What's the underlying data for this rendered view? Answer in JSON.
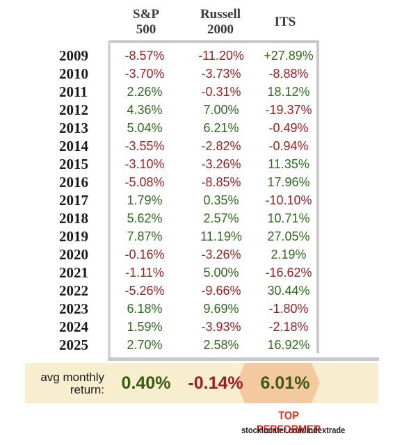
{
  "chart_data": {
    "type": "table",
    "columns": [
      {
        "line1": "S&P",
        "line2": "500"
      },
      {
        "line1": "Russell",
        "line2": "2000"
      },
      {
        "line1": "ITS",
        "line2": ""
      }
    ],
    "rows": [
      {
        "year": "2009",
        "values": [
          "-8.57%",
          "-11.20%",
          "+27.89%"
        ]
      },
      {
        "year": "2010",
        "values": [
          "-3.70%",
          "-3.73%",
          "-8.88%"
        ]
      },
      {
        "year": "2011",
        "values": [
          "2.26%",
          "-0.31%",
          "18.12%"
        ]
      },
      {
        "year": "2012",
        "values": [
          "4.36%",
          "7.00%",
          "-19.37%"
        ]
      },
      {
        "year": "2013",
        "values": [
          "5.04%",
          "6.21%",
          "-0.49%"
        ]
      },
      {
        "year": "2014",
        "values": [
          "-3.55%",
          "-2.82%",
          "-0.94%"
        ]
      },
      {
        "year": "2015",
        "values": [
          "-3.10%",
          "-3.26%",
          "11.35%"
        ]
      },
      {
        "year": "2016",
        "values": [
          "-5.08%",
          "-8.85%",
          "17.96%"
        ]
      },
      {
        "year": "2017",
        "values": [
          "1.79%",
          "0.35%",
          "-10.10%"
        ]
      },
      {
        "year": "2018",
        "values": [
          "5.62%",
          "2.57%",
          "10.71%"
        ]
      },
      {
        "year": "2019",
        "values": [
          "7.87%",
          "11.19%",
          "27.05%"
        ]
      },
      {
        "year": "2020",
        "values": [
          "-0.16%",
          "-3.26%",
          "2.19%"
        ]
      },
      {
        "year": "2021",
        "values": [
          "-1.11%",
          "5.00%",
          "-16.62%"
        ]
      },
      {
        "year": "2022",
        "values": [
          "-5.26%",
          "-9.66%",
          "30.44%"
        ]
      },
      {
        "year": "2023",
        "values": [
          "6.18%",
          "9.69%",
          "-1.80%"
        ]
      },
      {
        "year": "2024",
        "values": [
          "1.59%",
          "-3.93%",
          "-2.18%"
        ]
      },
      {
        "year": "2025",
        "values": [
          "2.70%",
          "2.58%",
          "16.92%"
        ]
      }
    ],
    "avg": {
      "label_line1": "avg monthly",
      "label_line2": "return:",
      "values": [
        "0.40%",
        "-0.14%",
        "6.01%"
      ]
    },
    "highlight_column": "ITS"
  },
  "footer": {
    "top_performer": "TOP PERFORMER",
    "source": "stocklocater.com/indextrade"
  },
  "colors": {
    "positive": "#2e6b1f",
    "negative": "#9a1f1f",
    "avg_background": "#f7eed0",
    "highlight": "#f5c9a0",
    "top_performer": "#e53222"
  }
}
